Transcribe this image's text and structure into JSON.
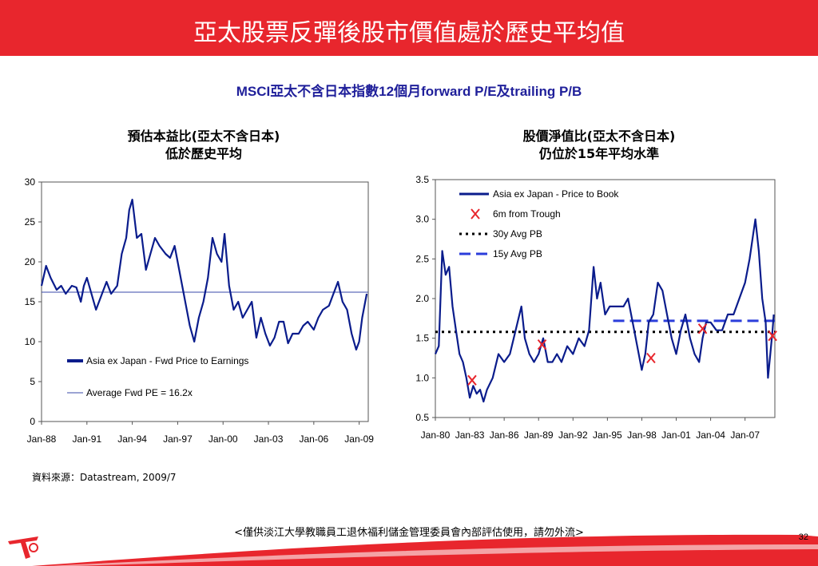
{
  "header": {
    "title": "亞太股票反彈後股市價值處於歷史平均值",
    "bar_color": "#e8262d"
  },
  "subtitle": "MSCI亞太不含日本指數12個月forward P/E及trailing P/B",
  "left_heading": {
    "line1": "預估本益比(亞太不含日本)",
    "line2": "低於歷史平均"
  },
  "right_heading": {
    "line1": "股價淨值比(亞太不含日本)",
    "line2": "仍位於15年平均水準"
  },
  "source": "資料來源：Datastream, 2009/7",
  "footer_note": "<僅供淡江大學教職員工退休福利儲金管理委員會內部評估使用，請勿外流>",
  "page_number": "32",
  "colors": {
    "series": "#0a1c8c",
    "avg_line": "#3a4aa8",
    "trough_marker": "#e8262d",
    "dotted": "#000000",
    "dashed": "#2b3ddb"
  },
  "chart_data": [
    {
      "type": "line",
      "xlim": [
        1988,
        2009.6
      ],
      "ylim": [
        0,
        30
      ],
      "yticks": [
        "0",
        "5",
        "10",
        "15",
        "20",
        "25",
        "30"
      ],
      "xticks": [
        "Jan-88",
        "Jan-91",
        "Jan-94",
        "Jan-97",
        "Jan-00",
        "Jan-03",
        "Jan-06",
        "Jan-09"
      ],
      "series": [
        {
          "name": "Asia ex Japan - Fwd Price to Earnings",
          "x": [
            1988,
            1988.3,
            1988.6,
            1989,
            1989.3,
            1989.6,
            1990,
            1990.3,
            1990.6,
            1990.8,
            1991,
            1991.3,
            1991.6,
            1992,
            1992.3,
            1992.6,
            1993,
            1993.3,
            1993.6,
            1993.8,
            1994,
            1994.3,
            1994.6,
            1994.9,
            1995.2,
            1995.5,
            1995.8,
            1996.2,
            1996.5,
            1996.8,
            1997.1,
            1997.4,
            1997.8,
            1998.1,
            1998.4,
            1998.7,
            1999,
            1999.3,
            1999.6,
            1999.9,
            2000.1,
            2000.4,
            2000.7,
            2001,
            2001.3,
            2001.6,
            2001.9,
            2002.2,
            2002.5,
            2002.8,
            2003.1,
            2003.4,
            2003.7,
            2004,
            2004.3,
            2004.6,
            2005,
            2005.3,
            2005.6,
            2006,
            2006.3,
            2006.6,
            2007,
            2007.3,
            2007.6,
            2007.9,
            2008.2,
            2008.5,
            2008.8,
            2009,
            2009.2,
            2009.4,
            2009.5
          ],
          "y": [
            17,
            19.5,
            18,
            16.5,
            17,
            16,
            17,
            16.8,
            15,
            17,
            18,
            16,
            14,
            16,
            17.5,
            16,
            17,
            21,
            23,
            26.5,
            27.8,
            23,
            23.5,
            19,
            21,
            23,
            22,
            21,
            20.5,
            22,
            19,
            16,
            12,
            10,
            13,
            15,
            18,
            23,
            21,
            20,
            23.5,
            17,
            14,
            15,
            13,
            14,
            15,
            10.5,
            13,
            11,
            9.5,
            10.5,
            12.5,
            12.5,
            9.8,
            11,
            11,
            12,
            12.5,
            11.5,
            13,
            14,
            14.5,
            16,
            17.5,
            15,
            14,
            11,
            9,
            10,
            13,
            15,
            16
          ]
        },
        {
          "name": "Average Fwd PE = 16.2x",
          "value": 16.2
        }
      ]
    },
    {
      "type": "line",
      "xlim": [
        1980,
        2009.6
      ],
      "ylim": [
        0.5,
        3.5
      ],
      "yticks": [
        "0.5",
        "1.0",
        "1.5",
        "2.0",
        "2.5",
        "3.0",
        "3.5"
      ],
      "xticks": [
        "Jan-80",
        "Jan-83",
        "Jan-86",
        "Jan-89",
        "Jan-92",
        "Jan-95",
        "Jan-98",
        "Jan-01",
        "Jan-04",
        "Jan-07"
      ],
      "series": [
        {
          "name": "Asia ex Japan - Price to Book",
          "x": [
            1980,
            1980.3,
            1980.6,
            1980.9,
            1981.2,
            1981.5,
            1981.8,
            1982.1,
            1982.4,
            1982.7,
            1983,
            1983.3,
            1983.6,
            1983.9,
            1984.2,
            1984.5,
            1985,
            1985.5,
            1986,
            1986.5,
            1987,
            1987.5,
            1987.8,
            1988.2,
            1988.6,
            1989,
            1989.4,
            1989.8,
            1990.2,
            1990.6,
            1991,
            1991.5,
            1992,
            1992.5,
            1993,
            1993.4,
            1993.8,
            1994.1,
            1994.4,
            1994.8,
            1995.2,
            1995.6,
            1996,
            1996.4,
            1996.8,
            1997.2,
            1997.6,
            1998,
            1998.3,
            1998.6,
            1999,
            1999.4,
            1999.8,
            2000.2,
            2000.6,
            2001,
            2001.4,
            2001.8,
            2002.2,
            2002.6,
            2003,
            2003.3,
            2003.6,
            2004,
            2004.5,
            2005,
            2005.5,
            2006,
            2006.5,
            2007,
            2007.4,
            2007.7,
            2007.9,
            2008.2,
            2008.5,
            2008.8,
            2009,
            2009.2,
            2009.4,
            2009.5
          ],
          "y": [
            1.3,
            1.4,
            2.6,
            2.3,
            2.4,
            1.9,
            1.6,
            1.3,
            1.2,
            1.0,
            0.75,
            0.9,
            0.8,
            0.85,
            0.7,
            0.85,
            1.0,
            1.3,
            1.2,
            1.3,
            1.6,
            1.9,
            1.5,
            1.3,
            1.2,
            1.3,
            1.5,
            1.2,
            1.2,
            1.3,
            1.2,
            1.4,
            1.3,
            1.5,
            1.4,
            1.6,
            2.4,
            2.0,
            2.2,
            1.8,
            1.9,
            1.9,
            1.9,
            1.9,
            2.0,
            1.7,
            1.4,
            1.1,
            1.3,
            1.7,
            1.8,
            2.2,
            2.1,
            1.8,
            1.5,
            1.3,
            1.6,
            1.8,
            1.5,
            1.3,
            1.2,
            1.5,
            1.7,
            1.7,
            1.6,
            1.6,
            1.8,
            1.8,
            2.0,
            2.2,
            2.5,
            2.8,
            3.0,
            2.6,
            2.0,
            1.7,
            1.0,
            1.3,
            1.6,
            1.8
          ]
        },
        {
          "name": "6m from Trough",
          "x": [
            1983.2,
            1989.3,
            1998.8,
            2003.3,
            2009.4
          ],
          "y": [
            0.97,
            1.42,
            1.25,
            1.62,
            1.53
          ]
        },
        {
          "name": "30y Avg PB",
          "value": 1.58
        },
        {
          "name": "15y Avg PB",
          "value": 1.72,
          "x_start": 1995.5
        }
      ]
    }
  ]
}
